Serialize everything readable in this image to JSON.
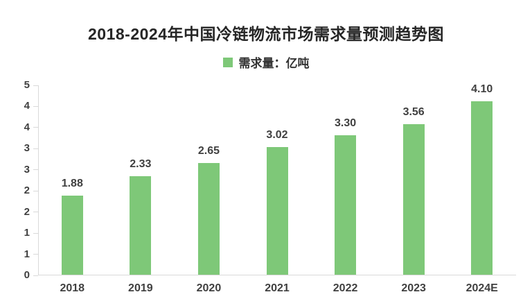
{
  "chart_data": {
    "type": "bar",
    "title": "2018-2024年中国冷链物流市场需求量预测趋势图",
    "legend": {
      "label": "需求量：亿吨",
      "position": "top"
    },
    "categories": [
      "2018",
      "2019",
      "2020",
      "2021",
      "2022",
      "2023",
      "2024E"
    ],
    "values": [
      1.88,
      2.33,
      2.65,
      3.02,
      3.3,
      3.56,
      4.1
    ],
    "value_labels": [
      "1.88",
      "2.33",
      "2.65",
      "3.02",
      "3.30",
      "3.56",
      "4.10"
    ],
    "ylim": [
      0,
      4.5
    ],
    "ytick_step": 0.5,
    "ytick_values": [
      0,
      0.5,
      1,
      1.5,
      2,
      2.5,
      3,
      3.5,
      4,
      4.5
    ],
    "ytick_labels": [
      "0",
      "1",
      "1",
      "2",
      "2",
      "3",
      "3",
      "4",
      "4",
      "5"
    ],
    "grid": false,
    "colors": {
      "bar": "#7ec878",
      "axis": "#d9d9d9",
      "title_text": "#262626",
      "label_text": "#404040"
    }
  }
}
